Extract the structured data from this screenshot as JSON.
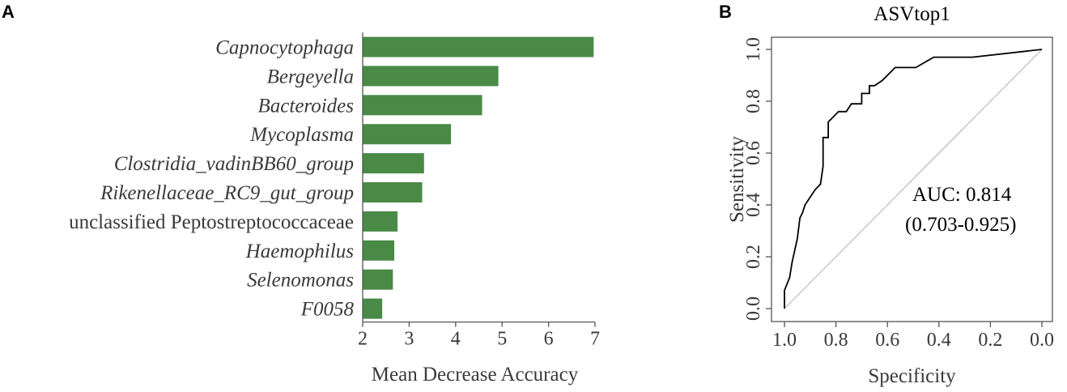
{
  "panels": {
    "a_label": "A",
    "b_label": "B"
  },
  "chart_data": [
    {
      "type": "bar",
      "orientation": "horizontal",
      "categories": [
        "Capnocytophaga",
        "Bergeyella",
        "Bacteroides",
        "Mycoplasma",
        "Clostridia_vadinBB60_group",
        "Rikenellaceae_RC9_gut_group",
        "unclassified Peptostreptococcaceae",
        "Haemophilus",
        "Selenomonas",
        "F0058"
      ],
      "italic": [
        true,
        true,
        true,
        true,
        true,
        true,
        false,
        true,
        true,
        true
      ],
      "values": [
        6.97,
        4.92,
        4.57,
        3.9,
        3.32,
        3.28,
        2.75,
        2.68,
        2.65,
        2.42
      ],
      "xlabel": "Mean Decrease Accuracy",
      "xlim": [
        2,
        7
      ],
      "xticks": [
        2,
        3,
        4,
        5,
        6,
        7
      ],
      "bar_color": "#4a8a47"
    },
    {
      "type": "line",
      "title": "ASVtop1",
      "xlabel": "Specificity",
      "ylabel": "Sensitivity",
      "xlim": [
        1.0,
        0.0
      ],
      "ylim": [
        0.0,
        1.0
      ],
      "xticks": [
        "1.0",
        "0.8",
        "0.6",
        "0.4",
        "0.2",
        "0.0"
      ],
      "yticks": [
        "0.0",
        "0.2",
        "0.4",
        "0.6",
        "0.8",
        "1.0"
      ],
      "series": [
        {
          "x": [
            1.0,
            1.0,
            0.98,
            0.97,
            0.95,
            0.94,
            0.93,
            0.92,
            0.9,
            0.88,
            0.86,
            0.85,
            0.85,
            0.83,
            0.83,
            0.81,
            0.79,
            0.78,
            0.76,
            0.74,
            0.74,
            0.7,
            0.7,
            0.67,
            0.67,
            0.65,
            0.65,
            0.62,
            0.6,
            0.57,
            0.53,
            0.49,
            0.42,
            0.27,
            0.0
          ],
          "y": [
            0.0,
            0.07,
            0.12,
            0.18,
            0.27,
            0.35,
            0.37,
            0.4,
            0.43,
            0.46,
            0.48,
            0.55,
            0.66,
            0.66,
            0.72,
            0.74,
            0.76,
            0.76,
            0.76,
            0.79,
            0.79,
            0.79,
            0.83,
            0.83,
            0.86,
            0.86,
            0.86,
            0.88,
            0.9,
            0.93,
            0.93,
            0.93,
            0.97,
            0.97,
            1.0
          ],
          "color": "#000000"
        }
      ],
      "reference_line": {
        "x": [
          1.0,
          0.0
        ],
        "y": [
          0.0,
          1.0
        ],
        "color": "#bbbbbb"
      },
      "annotation": [
        "AUC: 0.814",
        "(0.703-0.925)"
      ]
    }
  ]
}
